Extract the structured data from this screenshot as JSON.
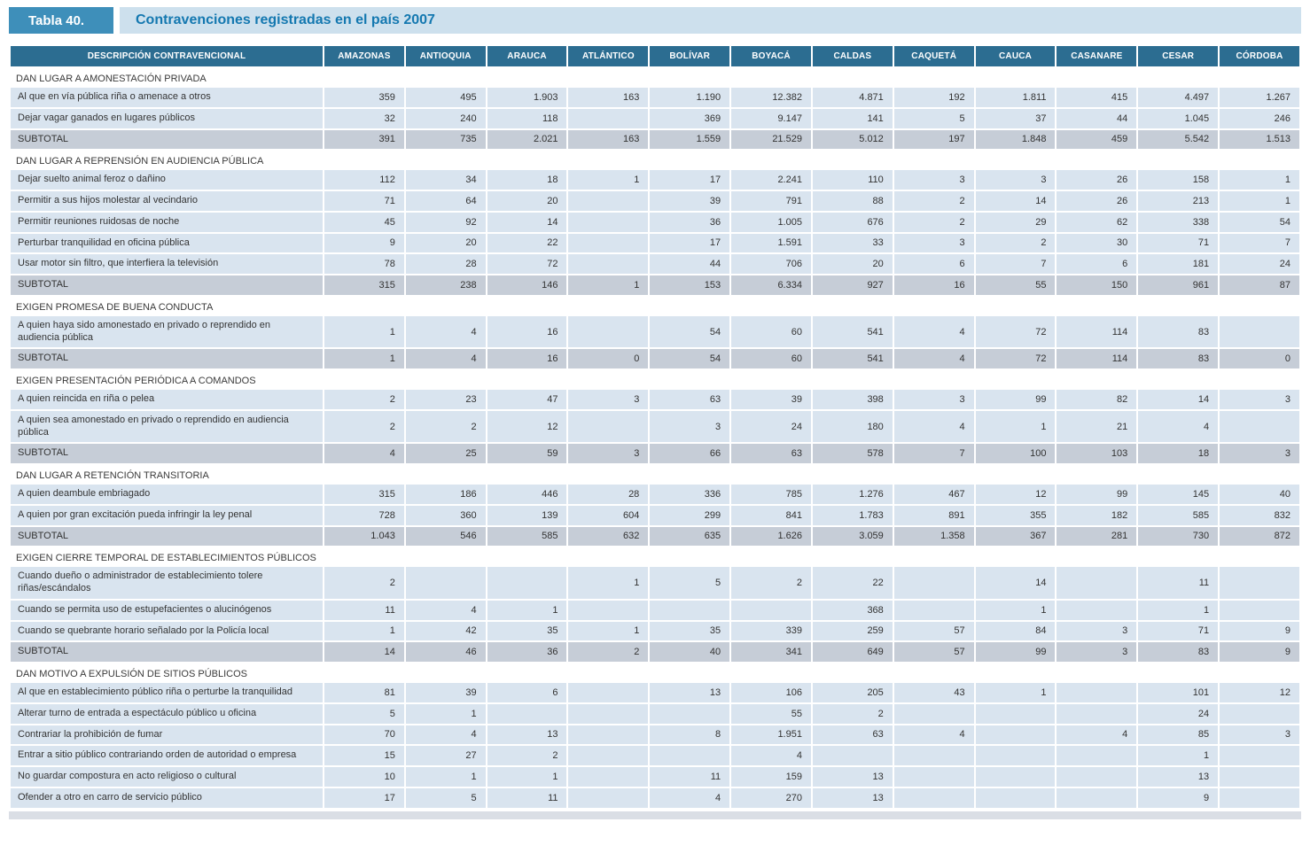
{
  "title": {
    "tag": "Tabla 40.",
    "text": "Contravenciones registradas en el país 2007"
  },
  "colors": {
    "header_bg": "#2c6d91",
    "row_bg": "#d9e4ef",
    "subtotal_bg": "#c6cdd7",
    "tag_bg": "#3e8fba",
    "title_strip_bg": "#cde0ed",
    "title_text": "#1478b0",
    "text": "#333333"
  },
  "table": {
    "desc_header": "DESCRIPCIÓN CONTRAVENCIONAL",
    "columns": [
      "AMAZONAS",
      "ANTIOQUIA",
      "ARAUCA",
      "ATLÁNTICO",
      "BOLÍVAR",
      "BOYACÁ",
      "CALDAS",
      "CAQUETÁ",
      "CAUCA",
      "CASANARE",
      "CESAR",
      "CÓRDOBA"
    ],
    "sections": [
      {
        "header": "DAN LUGAR A AMONESTACIÓN PRIVADA",
        "rows": [
          {
            "label": "Al que en vía pública riña o amenace a otros",
            "subtotal": false,
            "values": [
              "359",
              "495",
              "1.903",
              "163",
              "1.190",
              "12.382",
              "4.871",
              "192",
              "1.811",
              "415",
              "4.497",
              "1.267"
            ]
          },
          {
            "label": "Dejar vagar ganados en lugares públicos",
            "subtotal": false,
            "values": [
              "32",
              "240",
              "118",
              "",
              "369",
              "9.147",
              "141",
              "5",
              "37",
              "44",
              "1.045",
              "246"
            ]
          },
          {
            "label": "SUBTOTAL",
            "subtotal": true,
            "values": [
              "391",
              "735",
              "2.021",
              "163",
              "1.559",
              "21.529",
              "5.012",
              "197",
              "1.848",
              "459",
              "5.542",
              "1.513"
            ]
          }
        ]
      },
      {
        "header": "DAN LUGAR A REPRENSIÓN EN AUDIENCIA PÚBLICA",
        "rows": [
          {
            "label": "Dejar suelto animal feroz o dañino",
            "subtotal": false,
            "values": [
              "112",
              "34",
              "18",
              "1",
              "17",
              "2.241",
              "110",
              "3",
              "3",
              "26",
              "158",
              "1"
            ]
          },
          {
            "label": "Permitir a sus hijos molestar al vecindario",
            "subtotal": false,
            "values": [
              "71",
              "64",
              "20",
              "",
              "39",
              "791",
              "88",
              "2",
              "14",
              "26",
              "213",
              "1"
            ]
          },
          {
            "label": "Permitir reuniones ruidosas de noche",
            "subtotal": false,
            "values": [
              "45",
              "92",
              "14",
              "",
              "36",
              "1.005",
              "676",
              "2",
              "29",
              "62",
              "338",
              "54"
            ]
          },
          {
            "label": "Perturbar tranquilidad en oficina pública",
            "subtotal": false,
            "values": [
              "9",
              "20",
              "22",
              "",
              "17",
              "1.591",
              "33",
              "3",
              "2",
              "30",
              "71",
              "7"
            ]
          },
          {
            "label": "Usar motor sin filtro, que interfiera la televisión",
            "subtotal": false,
            "values": [
              "78",
              "28",
              "72",
              "",
              "44",
              "706",
              "20",
              "6",
              "7",
              "6",
              "181",
              "24"
            ]
          },
          {
            "label": "SUBTOTAL",
            "subtotal": true,
            "values": [
              "315",
              "238",
              "146",
              "1",
              "153",
              "6.334",
              "927",
              "16",
              "55",
              "150",
              "961",
              "87"
            ]
          }
        ]
      },
      {
        "header": "EXIGEN PROMESA DE BUENA CONDUCTA",
        "rows": [
          {
            "label": "A quien haya sido amonestado en privado o reprendido en audiencia pública",
            "subtotal": false,
            "values": [
              "1",
              "4",
              "16",
              "",
              "54",
              "60",
              "541",
              "4",
              "72",
              "114",
              "83",
              ""
            ]
          },
          {
            "label": "SUBTOTAL",
            "subtotal": true,
            "values": [
              "1",
              "4",
              "16",
              "0",
              "54",
              "60",
              "541",
              "4",
              "72",
              "114",
              "83",
              "0"
            ]
          }
        ]
      },
      {
        "header": "EXIGEN PRESENTACIÓN PERIÓDICA A COMANDOS",
        "rows": [
          {
            "label": "A quien reincida en riña o pelea",
            "subtotal": false,
            "values": [
              "2",
              "23",
              "47",
              "3",
              "63",
              "39",
              "398",
              "3",
              "99",
              "82",
              "14",
              "3"
            ]
          },
          {
            "label": "A quien sea amonestado en privado o reprendido en audiencia pública",
            "subtotal": false,
            "values": [
              "2",
              "2",
              "12",
              "",
              "3",
              "24",
              "180",
              "4",
              "1",
              "21",
              "4",
              ""
            ]
          },
          {
            "label": "SUBTOTAL",
            "subtotal": true,
            "values": [
              "4",
              "25",
              "59",
              "3",
              "66",
              "63",
              "578",
              "7",
              "100",
              "103",
              "18",
              "3"
            ]
          }
        ]
      },
      {
        "header": "DAN LUGAR A RETENCIÓN TRANSITORIA",
        "rows": [
          {
            "label": "A quien deambule embriagado",
            "subtotal": false,
            "values": [
              "315",
              "186",
              "446",
              "28",
              "336",
              "785",
              "1.276",
              "467",
              "12",
              "99",
              "145",
              "40"
            ]
          },
          {
            "label": "A quien por gran excitación pueda infringir la ley penal",
            "subtotal": false,
            "values": [
              "728",
              "360",
              "139",
              "604",
              "299",
              "841",
              "1.783",
              "891",
              "355",
              "182",
              "585",
              "832"
            ]
          },
          {
            "label": "SUBTOTAL",
            "subtotal": true,
            "values": [
              "1.043",
              "546",
              "585",
              "632",
              "635",
              "1.626",
              "3.059",
              "1.358",
              "367",
              "281",
              "730",
              "872"
            ]
          }
        ]
      },
      {
        "header": "EXIGEN CIERRE TEMPORAL DE ESTABLECIMIENTOS PÚBLICOS",
        "rows": [
          {
            "label": "Cuando dueño o administrador de establecimiento tolere riñas/escándalos",
            "subtotal": false,
            "values": [
              "2",
              "",
              "",
              "1",
              "5",
              "2",
              "22",
              "",
              "14",
              "",
              "11",
              ""
            ]
          },
          {
            "label": "Cuando se permita uso de estupefacientes o alucinógenos",
            "subtotal": false,
            "values": [
              "11",
              "4",
              "1",
              "",
              "",
              "",
              "368",
              "",
              "1",
              "",
              "1",
              ""
            ]
          },
          {
            "label": "Cuando se quebrante horario señalado por la Policía local",
            "subtotal": false,
            "values": [
              "1",
              "42",
              "35",
              "1",
              "35",
              "339",
              "259",
              "57",
              "84",
              "3",
              "71",
              "9"
            ]
          },
          {
            "label": "SUBTOTAL",
            "subtotal": true,
            "values": [
              "14",
              "46",
              "36",
              "2",
              "40",
              "341",
              "649",
              "57",
              "99",
              "3",
              "83",
              "9"
            ]
          }
        ]
      },
      {
        "header": "DAN MOTIVO A EXPULSIÓN DE SITIOS PÚBLICOS",
        "rows": [
          {
            "label": "Al que en establecimiento público riña o perturbe la tranquilidad",
            "subtotal": false,
            "values": [
              "81",
              "39",
              "6",
              "",
              "13",
              "106",
              "205",
              "43",
              "1",
              "",
              "101",
              "12"
            ]
          },
          {
            "label": "Alterar turno de entrada a espectáculo público u oficina",
            "subtotal": false,
            "values": [
              "5",
              "1",
              "",
              "",
              "",
              "55",
              "2",
              "",
              "",
              "",
              "24",
              ""
            ]
          },
          {
            "label": "Contrariar la prohibición de fumar",
            "subtotal": false,
            "values": [
              "70",
              "4",
              "13",
              "",
              "8",
              "1.951",
              "63",
              "4",
              "",
              "4",
              "85",
              "3"
            ]
          },
          {
            "label": "Entrar a sitio público contrariando orden de autoridad o empresa",
            "subtotal": false,
            "values": [
              "15",
              "27",
              "2",
              "",
              "",
              "4",
              "",
              "",
              "",
              "",
              "1",
              ""
            ]
          },
          {
            "label": "No guardar compostura en acto religioso o cultural",
            "subtotal": false,
            "values": [
              "10",
              "1",
              "1",
              "",
              "11",
              "159",
              "13",
              "",
              "",
              "",
              "13",
              ""
            ]
          },
          {
            "label": "Ofender a otro en carro de servicio público",
            "subtotal": false,
            "values": [
              "17",
              "5",
              "11",
              "",
              "4",
              "270",
              "13",
              "",
              "",
              "",
              "9",
              ""
            ]
          }
        ]
      }
    ]
  }
}
